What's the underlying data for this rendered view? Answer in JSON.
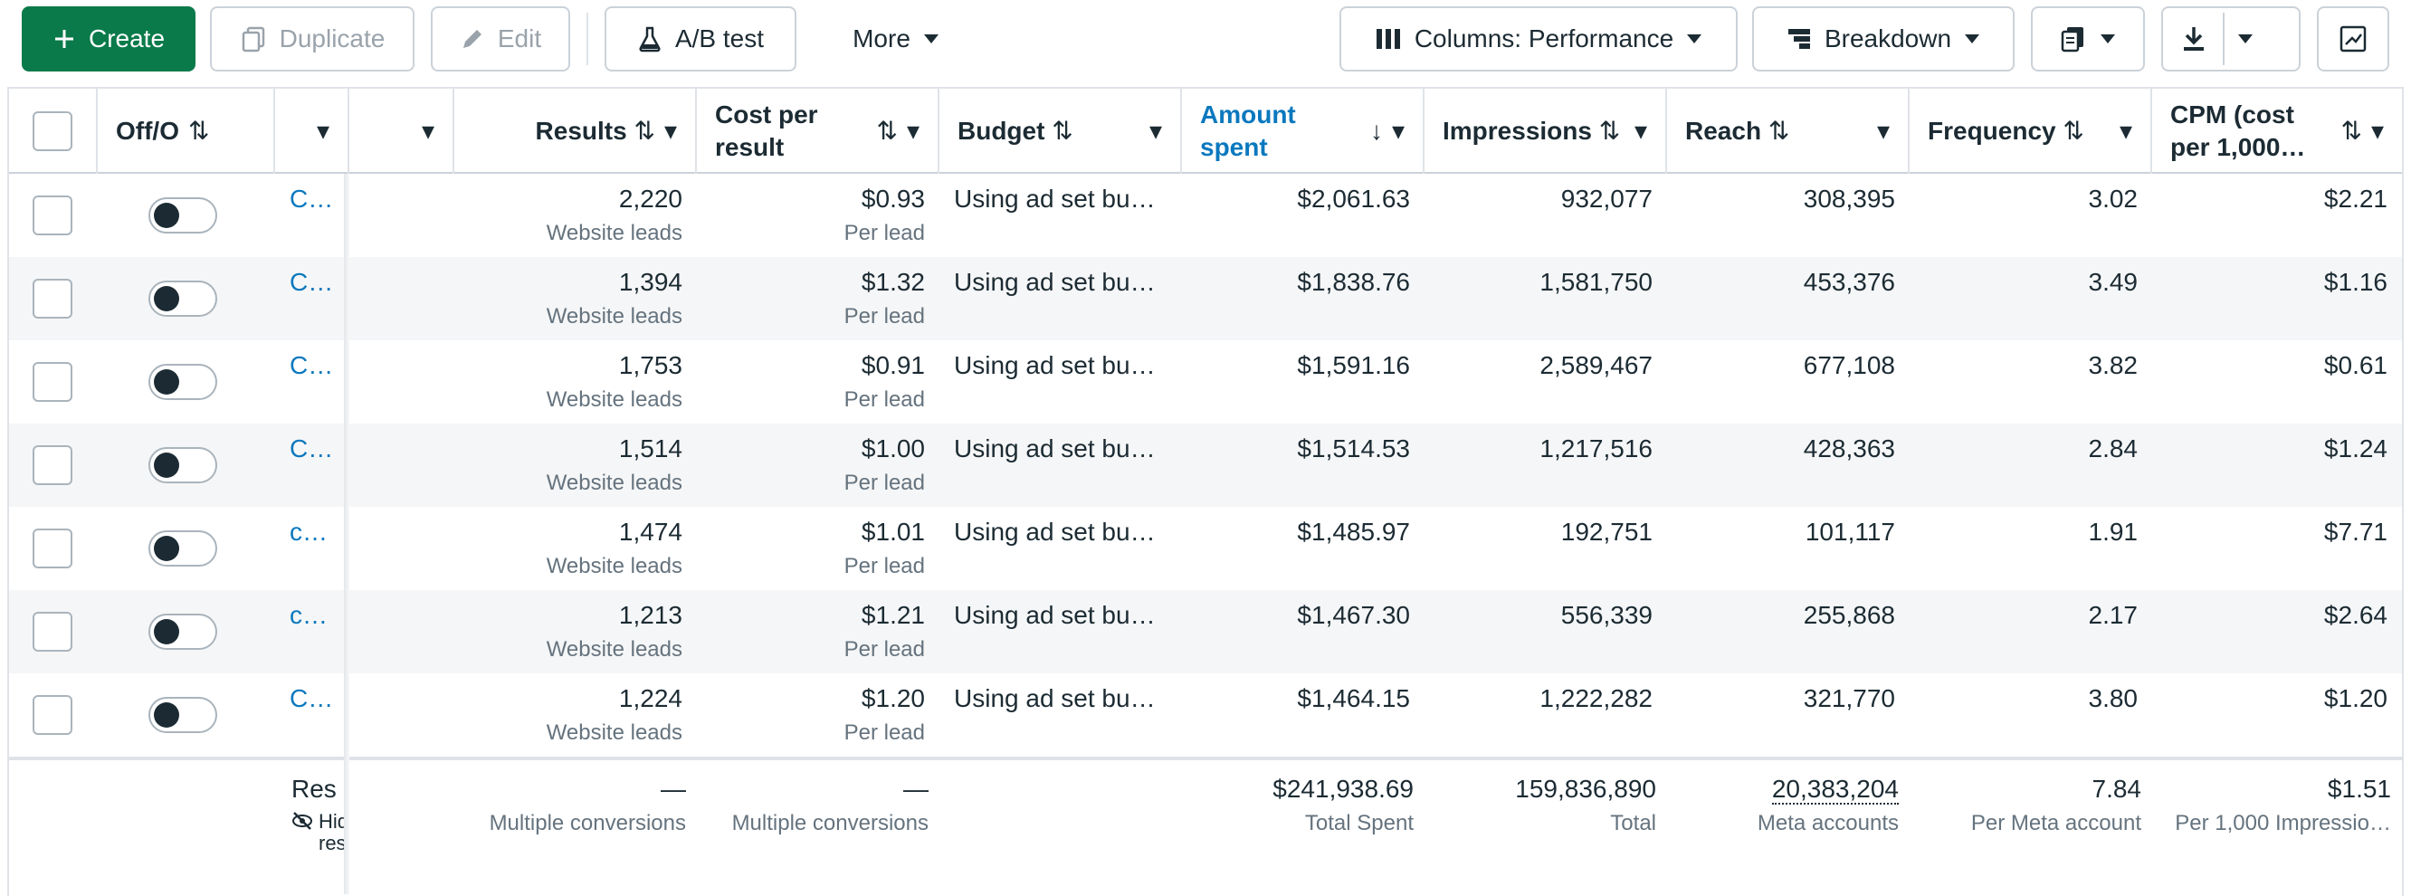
{
  "toolbar": {
    "create": "Create",
    "duplicate": "Duplicate",
    "edit": "Edit",
    "ab_test": "A/B test",
    "more": "More",
    "columns": "Columns: Performance",
    "breakdown": "Breakdown"
  },
  "columns": {
    "offon": "Off/O",
    "results": "Results",
    "cost_per_result": "Cost per result",
    "budget": "Budget",
    "amount_spent": "Amount spent",
    "impressions": "Impressions",
    "reach": "Reach",
    "frequency": "Frequency",
    "cpm": "CPM (cost per 1,000…"
  },
  "rows": [
    {
      "name": "C…",
      "results": "2,220",
      "results_sub": "Website leads",
      "cpr": "$0.93",
      "cpr_sub": "Per lead",
      "budget": "Using ad set bu…",
      "spent": "$2,061.63",
      "impressions": "932,077",
      "reach": "308,395",
      "frequency": "3.02",
      "cpm": "$2.21"
    },
    {
      "name": "C…",
      "results": "1,394",
      "results_sub": "Website leads",
      "cpr": "$1.32",
      "cpr_sub": "Per lead",
      "budget": "Using ad set bu…",
      "spent": "$1,838.76",
      "impressions": "1,581,750",
      "reach": "453,376",
      "frequency": "3.49",
      "cpm": "$1.16"
    },
    {
      "name": "C…",
      "results": "1,753",
      "results_sub": "Website leads",
      "cpr": "$0.91",
      "cpr_sub": "Per lead",
      "budget": "Using ad set bu…",
      "spent": "$1,591.16",
      "impressions": "2,589,467",
      "reach": "677,108",
      "frequency": "3.82",
      "cpm": "$0.61"
    },
    {
      "name": "C…",
      "results": "1,514",
      "results_sub": "Website leads",
      "cpr": "$1.00",
      "cpr_sub": "Per lead",
      "budget": "Using ad set bu…",
      "spent": "$1,514.53",
      "impressions": "1,217,516",
      "reach": "428,363",
      "frequency": "2.84",
      "cpm": "$1.24"
    },
    {
      "name": "c…",
      "results": "1,474",
      "results_sub": "Website leads",
      "cpr": "$1.01",
      "cpr_sub": "Per lead",
      "budget": "Using ad set bu…",
      "spent": "$1,485.97",
      "impressions": "192,751",
      "reach": "101,117",
      "frequency": "1.91",
      "cpm": "$7.71"
    },
    {
      "name": "c…",
      "results": "1,213",
      "results_sub": "Website leads",
      "cpr": "$1.21",
      "cpr_sub": "Per lead",
      "budget": "Using ad set bu…",
      "spent": "$1,467.30",
      "impressions": "556,339",
      "reach": "255,868",
      "frequency": "2.17",
      "cpm": "$2.64"
    },
    {
      "name": "C…",
      "results": "1,224",
      "results_sub": "Website leads",
      "cpr": "$1.20",
      "cpr_sub": "Per lead",
      "budget": "Using ad set bu…",
      "spent": "$1,464.15",
      "impressions": "1,222,282",
      "reach": "321,770",
      "frequency": "3.80",
      "cpm": "$1.20"
    }
  ],
  "footer": {
    "res_label": "Res",
    "hid_label": "Hid res",
    "results": "—",
    "results_sub": "Multiple conversions",
    "cpr": "—",
    "cpr_sub": "Multiple conversions",
    "spent": "$241,938.69",
    "spent_sub": "Total Spent",
    "impressions": "159,836,890",
    "impressions_sub": "Total",
    "reach": "20,383,204",
    "reach_sub": "Meta accounts",
    "frequency": "7.84",
    "frequency_sub": "Per Meta account",
    "cpm": "$1.51",
    "cpm_sub": "Per 1,000 Impressio…"
  }
}
